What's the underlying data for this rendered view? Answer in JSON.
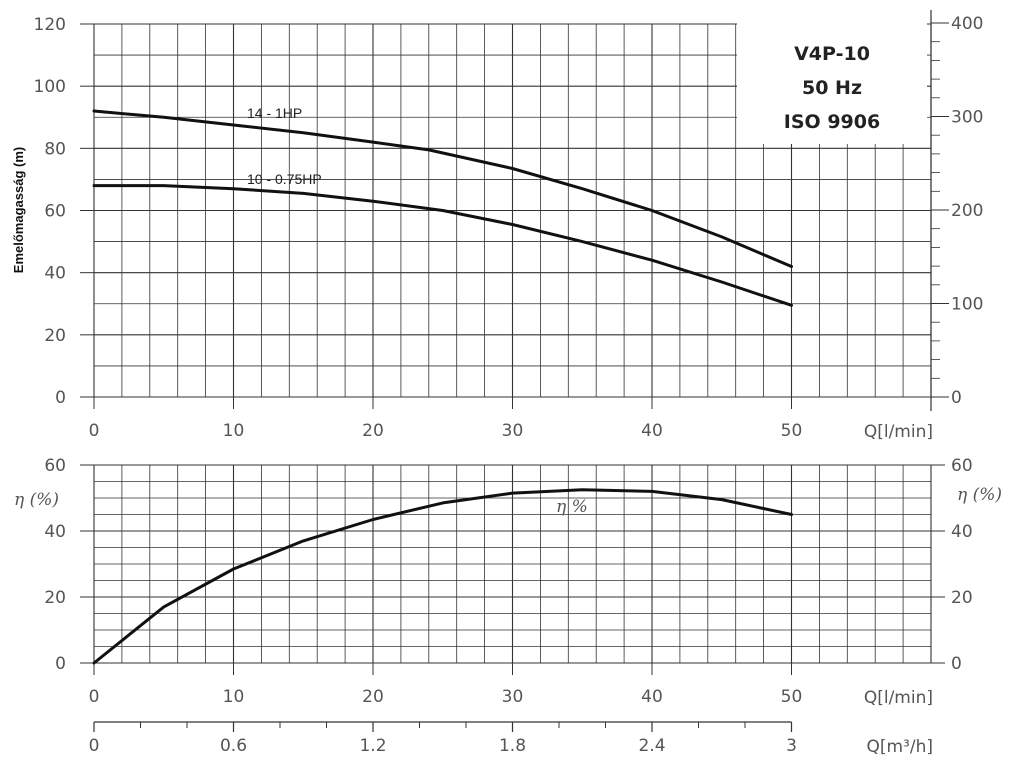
{
  "title_box": {
    "lines": [
      "V4P-10",
      "50 Hz",
      "ISO 9906"
    ]
  },
  "chart_data": [
    {
      "type": "line",
      "panel": "head",
      "xlabel": "Q[l/min]",
      "ylabel": "Emelőmagasság (m)",
      "xlim": [
        0,
        60
      ],
      "ylim": [
        0,
        120
      ],
      "x_ticks": [
        0,
        10,
        20,
        30,
        40,
        50
      ],
      "y_ticks": [
        0,
        20,
        40,
        60,
        80,
        100,
        120
      ],
      "y2_ticks": [
        "0",
        "100",
        "200",
        "300",
        "400"
      ],
      "grid": true,
      "series": [
        {
          "name": "14 - 1HP",
          "x": [
            0,
            5,
            10,
            15,
            20,
            24,
            30,
            35,
            40,
            45,
            50
          ],
          "y": [
            92,
            90,
            87.5,
            85,
            82,
            79.5,
            73.5,
            67,
            60,
            51.5,
            42
          ]
        },
        {
          "name": "10 - 0.75HP",
          "x": [
            0,
            5,
            10,
            15,
            20,
            25,
            30,
            35,
            40,
            45,
            50
          ],
          "y": [
            68,
            68,
            67,
            65.5,
            63,
            60,
            55.5,
            50,
            44,
            37,
            29.5
          ]
        }
      ]
    },
    {
      "type": "line",
      "panel": "efficiency",
      "xlabel": "Q[l/min]",
      "x2label": "Q[m³/h]",
      "ylabel": "η (%)",
      "xlim": [
        0,
        60
      ],
      "ylim": [
        0,
        60
      ],
      "x_ticks": [
        0,
        10,
        20,
        30,
        40,
        50
      ],
      "x2_ticks": [
        "0",
        "0.6",
        "1.2",
        "1.8",
        "2.4",
        "3"
      ],
      "y_ticks": [
        0,
        20,
        40,
        60
      ],
      "grid": true,
      "series": [
        {
          "name": "η %",
          "x": [
            0,
            5,
            10,
            15,
            20,
            25,
            30,
            35,
            40,
            45,
            50
          ],
          "y": [
            0,
            17,
            28.5,
            37,
            43.5,
            48.5,
            51.5,
            52.5,
            52,
            49.5,
            45
          ]
        }
      ]
    }
  ]
}
